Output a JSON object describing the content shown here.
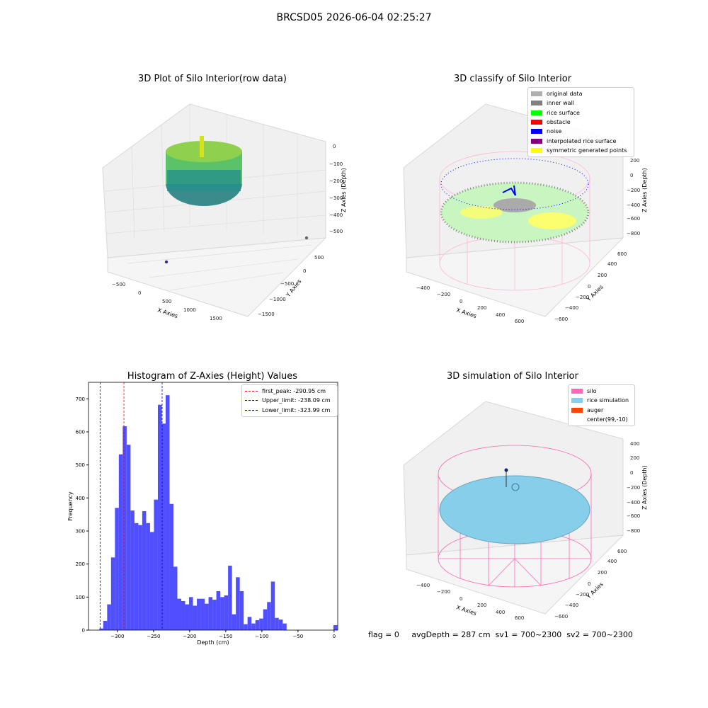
{
  "suptitle": "BRCSD05 2026-06-04 02:25:27",
  "status_text": "flag = 0     avgDepth = 287 cm  sv1 = 700~2300  sv2 = 700~2300",
  "colors": {
    "silo_wire": "#ff69b4",
    "rice_simulation": "#87ceeb",
    "auger": "#ff4500",
    "hist_bar": "#4f4fff",
    "first_peak": "#ff0000",
    "limits": "#0000aa"
  },
  "panels": {
    "raw": {
      "title": "3D Plot of Silo Interior(row data)",
      "xlabel": "X Axies",
      "ylabel": "Y Axies",
      "zlabel": "Z Axies (Depth)",
      "xticks": [
        "−500",
        "0",
        "500",
        "1000",
        "1500"
      ],
      "yticks": [
        "500",
        "0",
        "−500",
        "−1000",
        "−1500"
      ],
      "zticks": [
        "0",
        "−100",
        "−200",
        "−300",
        "−400",
        "−500"
      ]
    },
    "classify": {
      "title": "3D classify of Silo Interior",
      "xlabel": "X Axies",
      "ylabel": "Y Axies",
      "zlabel": "Z Axies (Depth)",
      "xticks": [
        "−400",
        "−200",
        "0",
        "200",
        "400",
        "600"
      ],
      "yticks": [
        "600",
        "400",
        "200",
        "0",
        "−200",
        "−400",
        "−600"
      ],
      "zticks": [
        "200",
        "0",
        "−200",
        "−400",
        "−600",
        "−800"
      ],
      "legend": [
        {
          "label": "original data",
          "color": "#b0b0b0"
        },
        {
          "label": "inner wall",
          "color": "#808080"
        },
        {
          "label": "rice surface",
          "color": "#00ff00"
        },
        {
          "label": "obstacle",
          "color": "#ff0000"
        },
        {
          "label": "noise",
          "color": "#0000ff"
        },
        {
          "label": "interpolated rice surface",
          "color": "#800080"
        },
        {
          "label": "symmetric generated points",
          "color": "#ffff00"
        }
      ]
    },
    "simulation": {
      "title": "3D simulation of Silo Interior",
      "xlabel": "X Axies",
      "ylabel": "Y Axies",
      "zlabel": "Z Axies (Depth)",
      "xticks": [
        "−400",
        "−200",
        "0",
        "200",
        "400",
        "600"
      ],
      "yticks": [
        "600",
        "400",
        "200",
        "0",
        "−200",
        "−400",
        "−600"
      ],
      "zticks": [
        "400",
        "200",
        "0",
        "−200",
        "−400",
        "−600",
        "−800"
      ],
      "legend": [
        {
          "label": "silo",
          "color": "#ff69b4"
        },
        {
          "label": "rice simulation",
          "color": "#87ceeb"
        },
        {
          "label": "auger",
          "color": "#ff4500"
        },
        {
          "label": "center(99,-10)",
          "color": ""
        }
      ]
    }
  },
  "chart_data": {
    "type": "bar",
    "title": "Histogram of Z-Axies (Height) Values",
    "xlabel": "Depth (cm)",
    "ylabel": "Frequency",
    "xlim": [
      -340,
      5
    ],
    "ylim": [
      0,
      750
    ],
    "xticks": [
      -300,
      -250,
      -200,
      -150,
      -100,
      -50,
      0
    ],
    "xtick_labels": [
      "−300",
      "−250",
      "−200",
      "−150",
      "−100",
      "−50",
      "0"
    ],
    "yticks": [
      0,
      100,
      200,
      300,
      400,
      500,
      600,
      700
    ],
    "bin_edges": [
      -325,
      -319.6,
      -314.2,
      -308.8,
      -303.4,
      -298,
      -292.6,
      -287.2,
      -281.8,
      -276.4,
      -271,
      -265.6,
      -260.2,
      -254.8,
      -249.4,
      -244,
      -238.6,
      -233.2,
      -227.8,
      -222.4,
      -217,
      -211.6,
      -206.2,
      -200.8,
      -195.4,
      -190,
      -184.6,
      -179.2,
      -173.8,
      -168.4,
      -163,
      -157.6,
      -152.2,
      -146.8,
      -141.4,
      -136,
      -130.6,
      -125.2,
      -119.8,
      -114.4,
      -109,
      -103.6,
      -98.2,
      -92.8,
      -87.4,
      -82,
      -76.6,
      -71.2,
      -65.8,
      -60.4,
      -55,
      -49.6,
      -44.2,
      -38.8,
      -33.4,
      -28,
      -22.6,
      -17.2,
      -11.8,
      -6.4,
      -1,
      4.4
    ],
    "values": [
      5,
      28,
      78,
      220,
      370,
      532,
      617,
      561,
      362,
      324,
      318,
      360,
      324,
      297,
      395,
      682,
      625,
      711,
      382,
      192,
      95,
      88,
      78,
      100,
      74,
      95,
      95,
      80,
      100,
      92,
      118,
      100,
      105,
      195,
      48,
      160,
      118,
      18,
      40,
      20,
      30,
      35,
      63,
      85,
      147,
      37,
      32,
      20,
      0,
      0,
      0,
      0,
      0,
      0,
      0,
      0,
      0,
      0,
      0,
      0,
      15
    ],
    "lines": [
      {
        "label": "first_peak: -290.95 cm",
        "x": -290.95,
        "color": "#ff0000"
      },
      {
        "label": "Upper_limit: -238.09 cm",
        "x": -238.09,
        "color": "#0000aa"
      },
      {
        "label": "Lower_limit: -323.99 cm",
        "x": -323.99,
        "color": "#0000aa"
      }
    ]
  }
}
